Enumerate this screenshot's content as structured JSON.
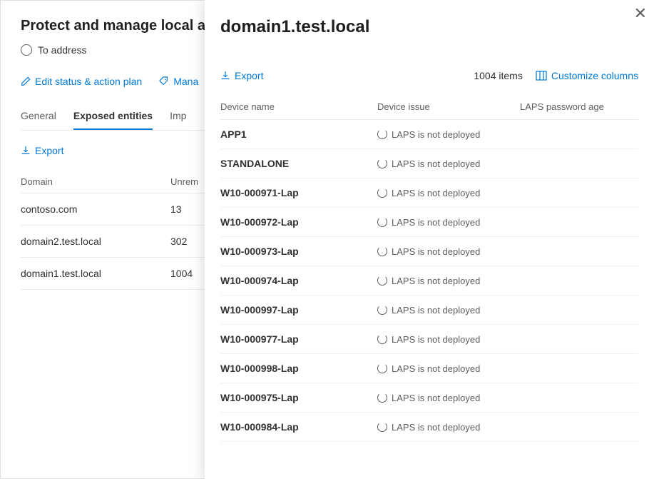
{
  "main": {
    "title": "Protect and manage local a",
    "status_label": "To address",
    "actions": {
      "edit": "Edit status & action plan",
      "manage": "Mana"
    },
    "tabs": {
      "general": "General",
      "exposed": "Exposed entities",
      "imp": "Imp"
    },
    "export_label": "Export",
    "table": {
      "col_domain": "Domain",
      "col_unrem": "Unrem",
      "rows": [
        {
          "domain": "contoso.com",
          "count": "13"
        },
        {
          "domain": "domain2.test.local",
          "count": "302"
        },
        {
          "domain": "domain1.test.local",
          "count": "1004"
        }
      ]
    }
  },
  "flyout": {
    "title": "domain1.test.local",
    "export_label": "Export",
    "items_count": "1004 items",
    "customize_label": "Customize columns",
    "header": {
      "device": "Device name",
      "issue": "Device issue",
      "age": "LAPS password age"
    },
    "issue_text": "LAPS is not deployed",
    "devices": [
      "APP1",
      "STANDALONE",
      "W10-000971-Lap",
      "W10-000972-Lap",
      "W10-000973-Lap",
      "W10-000974-Lap",
      "W10-000997-Lap",
      "W10-000977-Lap",
      "W10-000998-Lap",
      "W10-000975-Lap",
      "W10-000984-Lap"
    ]
  },
  "colors": {
    "accent": "#0078d4",
    "text": "#323130",
    "muted": "#605e5c",
    "border": "#edebe9"
  }
}
